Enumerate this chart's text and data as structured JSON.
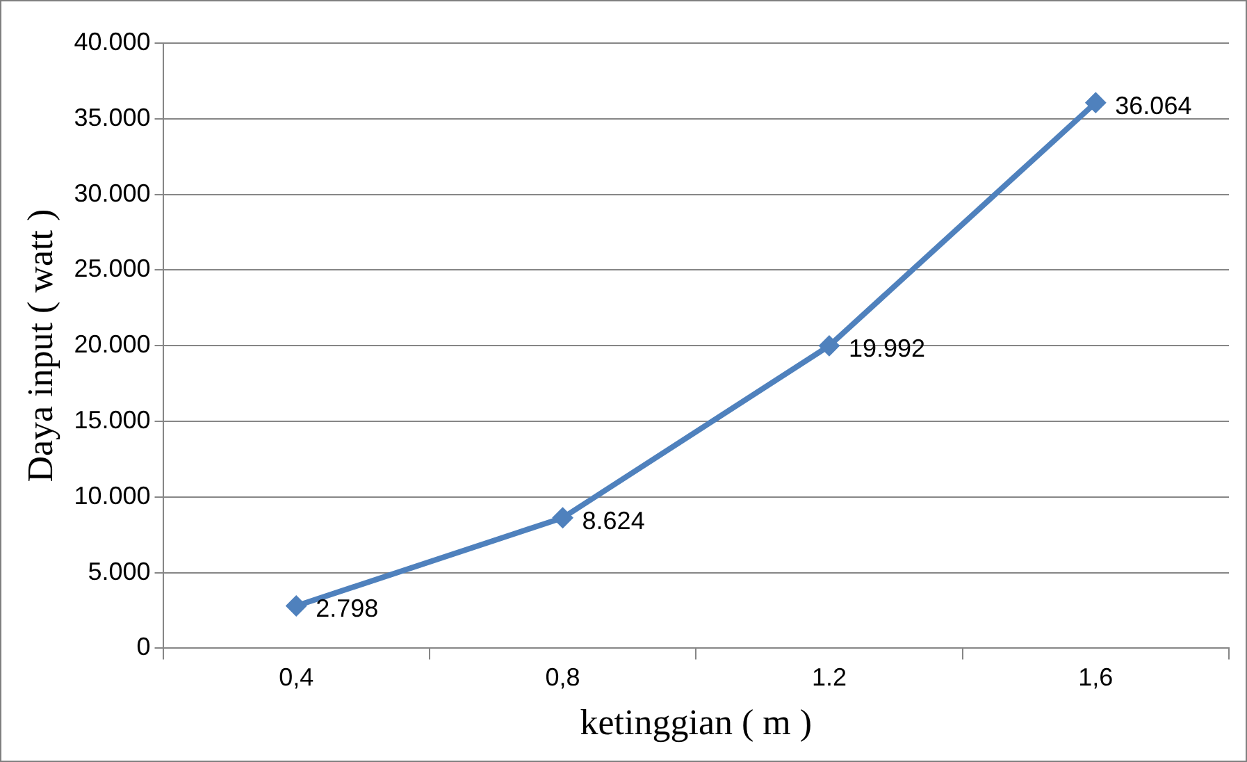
{
  "chart_data": {
    "type": "line",
    "xlabel": "ketinggian ( m )",
    "ylabel": "Daya input ( watt )",
    "categories": [
      "0,4",
      "0,8",
      "1.2",
      "1,6"
    ],
    "series": [
      {
        "color": "#4f81bd",
        "values": [
          2798,
          8624,
          19992,
          36064
        ],
        "value_labels": [
          "2.798",
          "8.624",
          "19.992",
          "36.064"
        ]
      }
    ],
    "ylim": [
      0,
      40000
    ],
    "yticks": [
      {
        "value": 0,
        "label": "0"
      },
      {
        "value": 5000,
        "label": "5.000"
      },
      {
        "value": 10000,
        "label": "10.000"
      },
      {
        "value": 15000,
        "label": "15.000"
      },
      {
        "value": 20000,
        "label": "20.000"
      },
      {
        "value": 25000,
        "label": "25.000"
      },
      {
        "value": 30000,
        "label": "30.000"
      },
      {
        "value": 35000,
        "label": "35.000"
      },
      {
        "value": 40000,
        "label": "40.000"
      }
    ],
    "grid": "y",
    "legend": false,
    "marker": "diamond",
    "line_style": "solid"
  }
}
